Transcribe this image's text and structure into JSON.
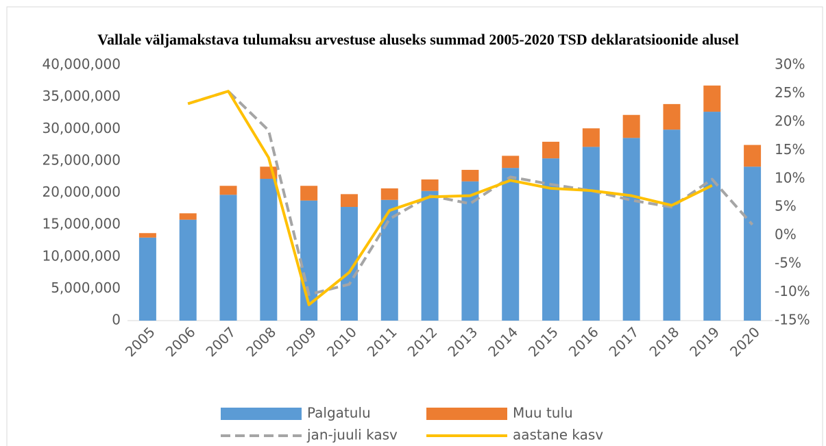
{
  "chart_data": {
    "type": "bar-line",
    "title": "Vallale väljamakstava tulumaksu arvestuse aluseks  summad 2005-2020 TSD deklaratsioonide alusel",
    "categories": [
      "2005",
      "2006",
      "2007",
      "2008",
      "2009",
      "2010",
      "2011",
      "2012",
      "2013",
      "2014",
      "2015",
      "2016",
      "2017",
      "2018",
      "2019",
      "2020"
    ],
    "series": [
      {
        "name": "Palgatulu",
        "color": "#5b9bd5",
        "kind": "bar",
        "values": [
          13000000,
          15800000,
          19700000,
          22200000,
          18800000,
          17800000,
          18900000,
          20300000,
          21800000,
          23900000,
          25400000,
          27200000,
          28600000,
          29900000,
          32700000,
          24100000
        ]
      },
      {
        "name": "Muu tulu",
        "color": "#ed7d31",
        "kind": "bar",
        "values": [
          700000,
          1000000,
          1400000,
          1900000,
          2300000,
          2000000,
          1800000,
          1800000,
          1800000,
          1900000,
          2600000,
          2900000,
          3600000,
          4000000,
          4100000,
          3400000
        ]
      },
      {
        "name": "jan-juuli kasv",
        "color": "#a5a5a5",
        "kind": "line",
        "dashed": true,
        "axis": "y2",
        "values": [
          null,
          23.2,
          25.4,
          18.5,
          -10.4,
          -8.6,
          2.9,
          7.0,
          5.6,
          10.3,
          9.0,
          7.9,
          6.2,
          5.0,
          9.9,
          1.9
        ]
      },
      {
        "name": "aastane kasv",
        "color": "#ffc000",
        "kind": "line",
        "dashed": false,
        "axis": "y2",
        "values": [
          null,
          23.2,
          25.4,
          13.7,
          -12.2,
          -6.5,
          4.4,
          6.8,
          7.0,
          9.7,
          8.3,
          7.9,
          7.0,
          5.3,
          8.8,
          null
        ]
      }
    ],
    "ylim": [
      0,
      40000000
    ],
    "yticks": [
      0,
      {
        "value": 5000000,
        "label": "5,000,000"
      },
      {
        "value": 10000000,
        "label": "10,000,000"
      },
      {
        "value": 15000000,
        "label": "15,000,000"
      },
      {
        "value": 20000000,
        "label": "20,000,000"
      },
      {
        "value": 25000000,
        "label": "25,000,000"
      },
      {
        "value": 30000000,
        "label": "30,000,000"
      },
      {
        "value": 35000000,
        "label": "35,000,000"
      },
      {
        "value": 40000000,
        "label": "40,000,000"
      }
    ],
    "y2lim": [
      -15,
      30
    ],
    "y2ticks": [
      {
        "value": -15,
        "label": "-15%"
      },
      {
        "value": -10,
        "label": "-10%"
      },
      {
        "value": -5,
        "label": "-5%"
      },
      {
        "value": 0,
        "label": "0%"
      },
      {
        "value": 5,
        "label": "5%"
      },
      {
        "value": 10,
        "label": "10%"
      },
      {
        "value": 15,
        "label": "15%"
      },
      {
        "value": 20,
        "label": "20%"
      },
      {
        "value": 25,
        "label": "25%"
      },
      {
        "value": 30,
        "label": "30%"
      }
    ],
    "grid": false,
    "legend": "bottom"
  }
}
